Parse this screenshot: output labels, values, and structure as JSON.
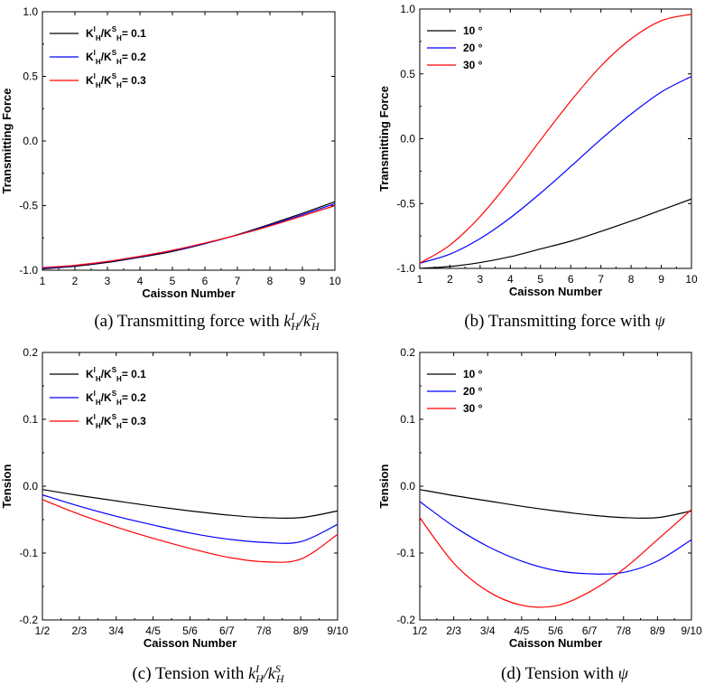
{
  "chart_data": [
    {
      "type": "line",
      "id": "a",
      "caption": "(a) Transmitting force with",
      "caption_math": "kHI/kHS",
      "xlabel": "Caisson Number",
      "ylabel": "Transmitting Force",
      "x_ticks": [
        "1",
        "2",
        "3",
        "4",
        "5",
        "6",
        "7",
        "8",
        "9",
        "10"
      ],
      "y_ticks": [
        "-1.0",
        "-0.5",
        "0.0",
        "0.5",
        "1.0"
      ],
      "xlim": [
        1,
        10
      ],
      "ylim": [
        -1.0,
        1.0
      ],
      "legend": "top-left",
      "legend_style": "ratio",
      "x": [
        1,
        2,
        3,
        4,
        5,
        6,
        7,
        8,
        9,
        10
      ],
      "series": [
        {
          "name": "0.1",
          "color": "#000000",
          "values": [
            -0.99,
            -0.97,
            -0.94,
            -0.9,
            -0.855,
            -0.795,
            -0.725,
            -0.645,
            -0.56,
            -0.47
          ]
        },
        {
          "name": "0.2",
          "color": "#0000ff",
          "values": [
            -0.985,
            -0.965,
            -0.935,
            -0.895,
            -0.85,
            -0.793,
            -0.727,
            -0.652,
            -0.57,
            -0.485
          ]
        },
        {
          "name": "0.3",
          "color": "#ff0000",
          "values": [
            -0.98,
            -0.962,
            -0.932,
            -0.892,
            -0.846,
            -0.79,
            -0.728,
            -0.658,
            -0.58,
            -0.5
          ]
        }
      ]
    },
    {
      "type": "line",
      "id": "b",
      "caption": "(b) Transmitting force with",
      "caption_math": "ψ",
      "xlabel": "Caisson Number",
      "ylabel": "Transmitting Force",
      "x_ticks": [
        "1",
        "2",
        "3",
        "4",
        "5",
        "6",
        "7",
        "8",
        "9",
        "10"
      ],
      "y_ticks": [
        "-1.0",
        "-0.5",
        "0.0",
        "0.5",
        "1.0"
      ],
      "xlim": [
        1,
        10
      ],
      "ylim": [
        -1.0,
        1.0
      ],
      "legend": "top-left",
      "legend_style": "angle",
      "x": [
        1,
        2,
        3,
        4,
        5,
        6,
        7,
        8,
        9,
        10
      ],
      "series": [
        {
          "name": "10 °",
          "color": "#000000",
          "values": [
            -1.0,
            -0.985,
            -0.955,
            -0.91,
            -0.85,
            -0.79,
            -0.715,
            -0.635,
            -0.55,
            -0.465
          ]
        },
        {
          "name": "20 °",
          "color": "#0000ff",
          "values": [
            -0.96,
            -0.89,
            -0.77,
            -0.61,
            -0.42,
            -0.215,
            -0.005,
            0.19,
            0.36,
            0.48
          ]
        },
        {
          "name": "30 °",
          "color": "#ff0000",
          "values": [
            -0.96,
            -0.82,
            -0.6,
            -0.32,
            -0.01,
            0.29,
            0.56,
            0.77,
            0.91,
            0.96
          ]
        }
      ]
    },
    {
      "type": "line",
      "id": "c",
      "caption": "(c) Tension with",
      "caption_math": "kHI/kHS",
      "xlabel": "Caisson Number",
      "ylabel": "Tension",
      "x_ticks": [
        "1/2",
        "2/3",
        "3/4",
        "4/5",
        "5/6",
        "6/7",
        "7/8",
        "8/9",
        "9/10"
      ],
      "y_ticks": [
        "-0.2",
        "-0.1",
        "0.0",
        "0.1",
        "0.2"
      ],
      "xlim": [
        1,
        9
      ],
      "ylim": [
        -0.2,
        0.2
      ],
      "legend": "top-left",
      "legend_style": "ratio",
      "x": [
        1,
        2,
        3,
        4,
        5,
        6,
        7,
        8,
        9
      ],
      "series": [
        {
          "name": "0.1",
          "color": "#000000",
          "values": [
            -0.005,
            -0.014,
            -0.022,
            -0.03,
            -0.037,
            -0.043,
            -0.047,
            -0.047,
            -0.037
          ]
        },
        {
          "name": "0.2",
          "color": "#0000ff",
          "values": [
            -0.013,
            -0.03,
            -0.045,
            -0.058,
            -0.07,
            -0.079,
            -0.084,
            -0.083,
            -0.057
          ]
        },
        {
          "name": "0.3",
          "color": "#ff0000",
          "values": [
            -0.02,
            -0.042,
            -0.061,
            -0.078,
            -0.093,
            -0.106,
            -0.113,
            -0.109,
            -0.072
          ]
        }
      ]
    },
    {
      "type": "line",
      "id": "d",
      "caption": "(d) Tension with",
      "caption_math": "ψ",
      "xlabel": "Caisson Number",
      "ylabel": "Tension",
      "x_ticks": [
        "1/2",
        "2/3",
        "3/4",
        "4/5",
        "5/6",
        "6/7",
        "7/8",
        "8/9",
        "9/10"
      ],
      "y_ticks": [
        "-0.2",
        "-0.1",
        "0.0",
        "0.1",
        "0.2"
      ],
      "xlim": [
        1,
        9
      ],
      "ylim": [
        -0.2,
        0.2
      ],
      "legend": "top-left",
      "legend_style": "angle",
      "x": [
        1,
        2,
        3,
        4,
        5,
        6,
        7,
        8,
        9
      ],
      "series": [
        {
          "name": "10 °",
          "color": "#000000",
          "values": [
            -0.005,
            -0.014,
            -0.022,
            -0.03,
            -0.037,
            -0.043,
            -0.047,
            -0.047,
            -0.037
          ]
        },
        {
          "name": "20 °",
          "color": "#0000ff",
          "values": [
            -0.023,
            -0.06,
            -0.09,
            -0.112,
            -0.126,
            -0.131,
            -0.129,
            -0.112,
            -0.08
          ]
        },
        {
          "name": "30 °",
          "color": "#ff0000",
          "values": [
            -0.047,
            -0.115,
            -0.157,
            -0.178,
            -0.179,
            -0.158,
            -0.124,
            -0.08,
            -0.035
          ]
        }
      ]
    }
  ]
}
